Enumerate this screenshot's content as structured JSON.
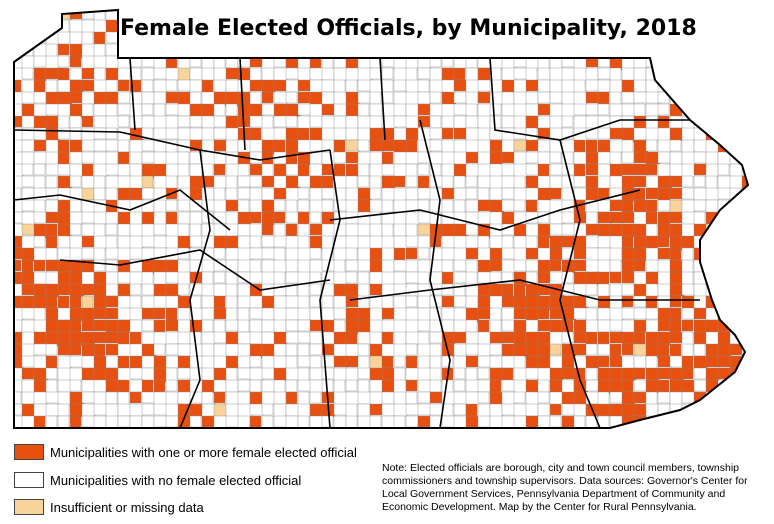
{
  "title": "Female Elected Officials, by Municipality, 2018",
  "colors": {
    "with_female_official": "#e8500f",
    "no_female_official": "#ffffff",
    "missing_data": "#f8d49a",
    "boundary": "#000000",
    "inner_boundary": "#888888"
  },
  "legend": {
    "items": [
      {
        "label": "Municipalities with one or more female elected official",
        "color_key": "with_female_official"
      },
      {
        "label": "Municipalities with no female elected official",
        "color_key": "no_female_official"
      },
      {
        "label": "Insufficient or missing data",
        "color_key": "missing_data"
      }
    ]
  },
  "note": "Note: Elected officials are borough, city and town council members, township commissioners and township supervisors. Data sources: Governor's Center for Local Government Services, Pennsylvania Department of Community and Economic Development. Map by the Center for Rural Pennsylvania."
}
